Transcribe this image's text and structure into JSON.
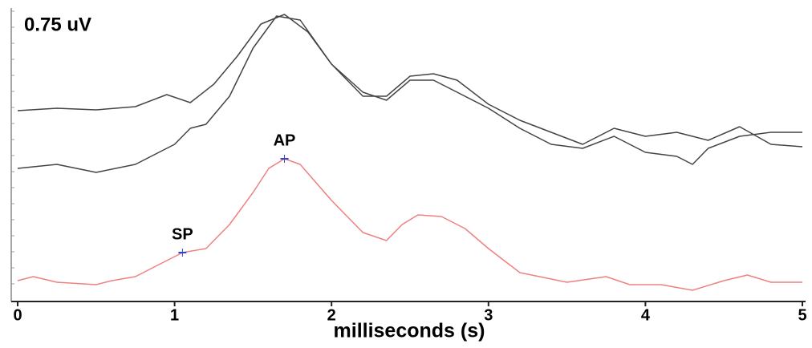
{
  "chart_data": {
    "type": "line",
    "scale_label": "0.75 uV",
    "x_label": "milliseconds (s)",
    "xlim": [
      0,
      5
    ],
    "xticks": [
      0,
      1,
      2,
      3,
      4,
      5
    ],
    "ylim": [
      -3.8,
      0
    ],
    "series": [
      {
        "color": "#444444",
        "x": [
          0,
          0.25,
          0.5,
          0.75,
          0.95,
          1.1,
          1.25,
          1.4,
          1.55,
          1.7,
          1.85,
          2.0,
          2.2,
          2.35,
          2.5,
          2.65,
          2.8,
          3.0,
          3.2,
          3.4,
          3.6,
          3.8,
          4.0,
          4.2,
          4.4,
          4.6,
          4.8,
          5.0
        ],
        "values": [
          -1.38,
          -1.35,
          -1.37,
          -1.33,
          -1.18,
          -1.28,
          -1.05,
          -0.7,
          -0.3,
          -0.18,
          -0.4,
          -0.8,
          -1.2,
          -1.2,
          -0.95,
          -0.92,
          -1.0,
          -1.3,
          -1.5,
          -1.65,
          -1.8,
          -1.6,
          -1.7,
          -1.65,
          -1.75,
          -1.58,
          -1.8,
          -1.83
        ]
      },
      {
        "color": "#444444",
        "x": [
          0,
          0.25,
          0.5,
          0.75,
          1.0,
          1.1,
          1.2,
          1.35,
          1.5,
          1.65,
          1.8,
          2.0,
          2.2,
          2.35,
          2.5,
          2.65,
          2.8,
          3.0,
          3.2,
          3.4,
          3.6,
          3.8,
          4.0,
          4.2,
          4.3,
          4.4,
          4.6,
          4.8,
          5.0
        ],
        "values": [
          -2.1,
          -2.05,
          -2.15,
          -2.05,
          -1.8,
          -1.6,
          -1.55,
          -1.2,
          -0.6,
          -0.2,
          -0.25,
          -0.8,
          -1.15,
          -1.25,
          -1.0,
          -1.0,
          -1.15,
          -1.35,
          -1.6,
          -1.8,
          -1.85,
          -1.7,
          -1.9,
          -1.95,
          -2.05,
          -1.85,
          -1.7,
          -1.65,
          -1.65
        ]
      },
      {
        "color": "#f08080",
        "x": [
          0,
          0.1,
          0.25,
          0.5,
          0.6,
          0.75,
          0.9,
          1.05,
          1.2,
          1.35,
          1.5,
          1.6,
          1.7,
          1.8,
          2.0,
          2.2,
          2.35,
          2.45,
          2.55,
          2.7,
          2.85,
          3.0,
          3.2,
          3.5,
          3.75,
          3.9,
          4.1,
          4.3,
          4.5,
          4.65,
          4.8,
          5.0
        ],
        "values": [
          -3.5,
          -3.45,
          -3.52,
          -3.55,
          -3.5,
          -3.45,
          -3.3,
          -3.15,
          -3.1,
          -2.8,
          -2.4,
          -2.1,
          -1.98,
          -2.05,
          -2.5,
          -2.9,
          -3.0,
          -2.8,
          -2.68,
          -2.7,
          -2.85,
          -3.1,
          -3.4,
          -3.52,
          -3.45,
          -3.55,
          -3.55,
          -3.62,
          -3.5,
          -3.43,
          -3.52,
          -3.52
        ]
      }
    ],
    "annotations": [
      {
        "text": "SP",
        "x": 1.05,
        "y": -3.15
      },
      {
        "text": "AP",
        "x": 1.7,
        "y": -1.98
      }
    ]
  }
}
